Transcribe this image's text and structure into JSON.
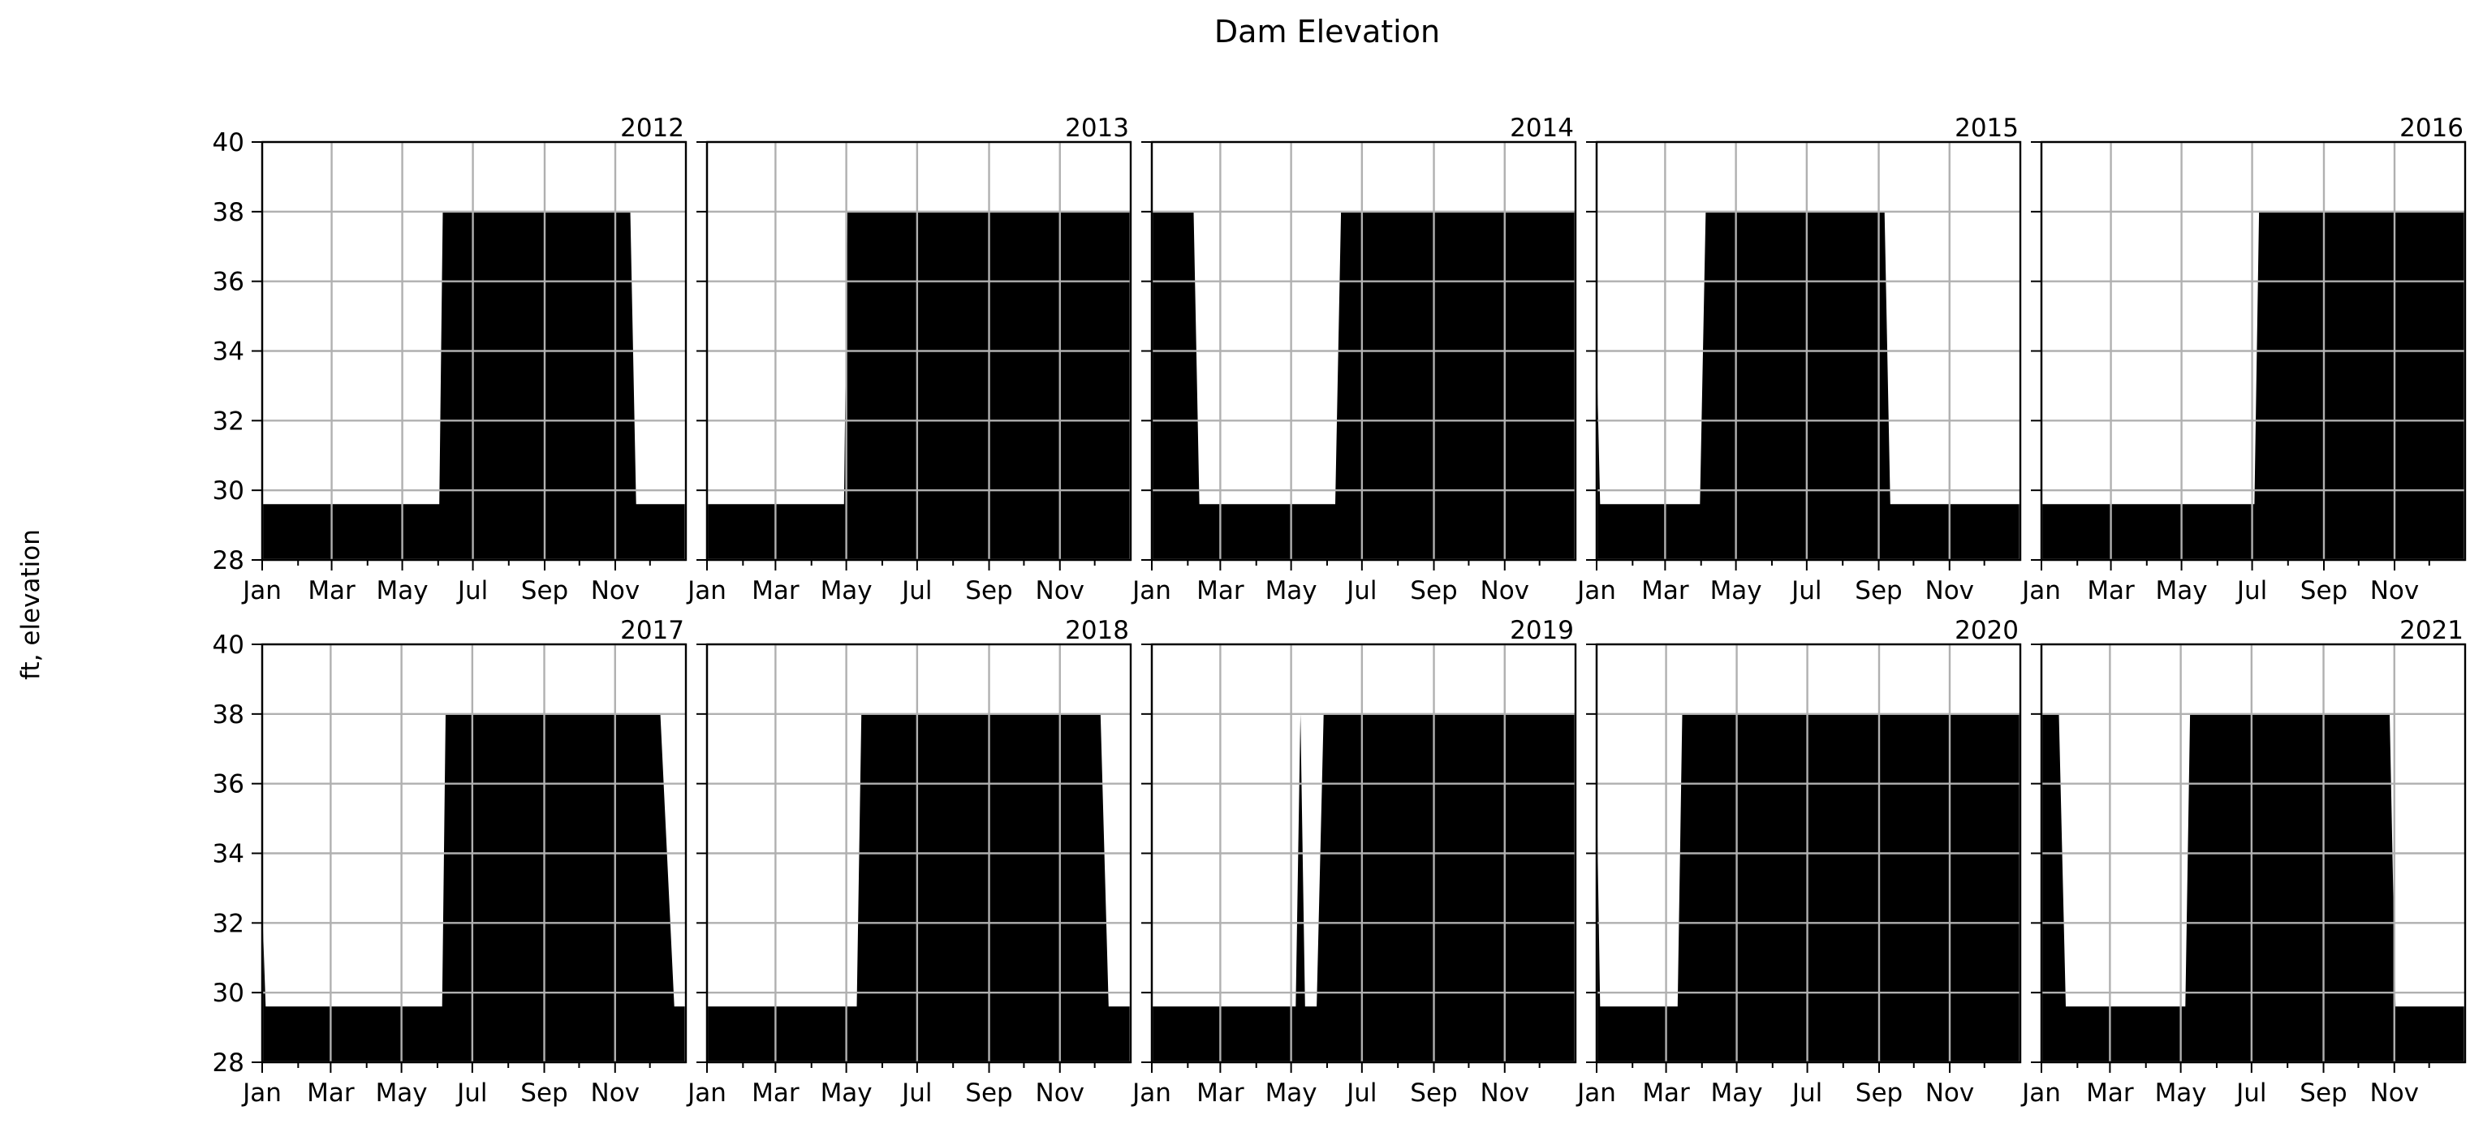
{
  "chart_data": {
    "type": "area",
    "title": "Dam Elevation",
    "ylabel": "ft, elevation",
    "xlabel": "",
    "ylim": [
      28,
      40
    ],
    "yticks": [
      28,
      30,
      32,
      34,
      36,
      38,
      40
    ],
    "xtick_labels": [
      "Jan",
      "Mar",
      "May",
      "Jul",
      "Sep",
      "Nov"
    ],
    "xtick_months": [
      0,
      2,
      4,
      6,
      8,
      10
    ],
    "grid": true,
    "fill_color": "#000000",
    "grid_color": "#b0b0b0",
    "panels": [
      {
        "year": "2012",
        "points": [
          [
            "2012-01-01",
            29.6
          ],
          [
            "2012-06-02",
            29.6
          ],
          [
            "2012-06-05",
            38.0
          ],
          [
            "2012-11-14",
            38.0
          ],
          [
            "2012-11-19",
            29.6
          ],
          [
            "2012-12-31",
            29.6
          ]
        ]
      },
      {
        "year": "2013",
        "points": [
          [
            "2013-01-01",
            29.6
          ],
          [
            "2013-04-29",
            29.6
          ],
          [
            "2013-05-02",
            38.0
          ],
          [
            "2013-12-31",
            38.0
          ]
        ]
      },
      {
        "year": "2014",
        "points": [
          [
            "2014-01-01",
            38.0
          ],
          [
            "2014-02-06",
            38.0
          ],
          [
            "2014-02-11",
            29.6
          ],
          [
            "2014-06-08",
            29.6
          ],
          [
            "2014-06-13",
            38.0
          ],
          [
            "2014-12-31",
            38.0
          ]
        ]
      },
      {
        "year": "2015",
        "points": [
          [
            "2015-01-01",
            34.0
          ],
          [
            "2015-01-04",
            29.6
          ],
          [
            "2015-03-31",
            29.6
          ],
          [
            "2015-04-05",
            38.0
          ],
          [
            "2015-09-06",
            38.0
          ],
          [
            "2015-09-11",
            29.6
          ],
          [
            "2015-12-31",
            29.6
          ]
        ]
      },
      {
        "year": "2016",
        "points": [
          [
            "2016-01-01",
            29.6
          ],
          [
            "2016-07-03",
            29.6
          ],
          [
            "2016-07-07",
            38.0
          ],
          [
            "2016-12-31",
            38.0
          ]
        ]
      },
      {
        "year": "2017",
        "points": [
          [
            "2017-01-01",
            32.5
          ],
          [
            "2017-01-04",
            29.6
          ],
          [
            "2017-06-05",
            29.6
          ],
          [
            "2017-06-08",
            38.0
          ],
          [
            "2017-12-10",
            38.0
          ],
          [
            "2017-12-22",
            29.6
          ],
          [
            "2017-12-31",
            29.6
          ]
        ]
      },
      {
        "year": "2018",
        "points": [
          [
            "2018-01-01",
            29.6
          ],
          [
            "2018-05-10",
            29.6
          ],
          [
            "2018-05-14",
            38.0
          ],
          [
            "2018-12-06",
            38.0
          ],
          [
            "2018-12-13",
            29.6
          ],
          [
            "2018-12-31",
            29.6
          ]
        ]
      },
      {
        "year": "2019",
        "points": [
          [
            "2019-01-01",
            29.6
          ],
          [
            "2019-05-05",
            29.6
          ],
          [
            "2019-05-09",
            38.0
          ],
          [
            "2019-05-13",
            29.6
          ],
          [
            "2019-05-23",
            29.6
          ],
          [
            "2019-05-29",
            38.0
          ],
          [
            "2019-12-31",
            38.0
          ]
        ]
      },
      {
        "year": "2020",
        "points": [
          [
            "2020-01-01",
            36.0
          ],
          [
            "2020-01-04",
            29.6
          ],
          [
            "2020-03-11",
            29.6
          ],
          [
            "2020-03-15",
            38.0
          ],
          [
            "2020-12-31",
            38.0
          ]
        ]
      },
      {
        "year": "2021",
        "points": [
          [
            "2021-01-01",
            38.0
          ],
          [
            "2021-01-16",
            38.0
          ],
          [
            "2021-01-22",
            29.6
          ],
          [
            "2021-05-05",
            29.6
          ],
          [
            "2021-05-09",
            38.0
          ],
          [
            "2021-10-28",
            38.0
          ],
          [
            "2021-11-02",
            29.6
          ],
          [
            "2021-12-31",
            29.6
          ]
        ]
      }
    ]
  }
}
